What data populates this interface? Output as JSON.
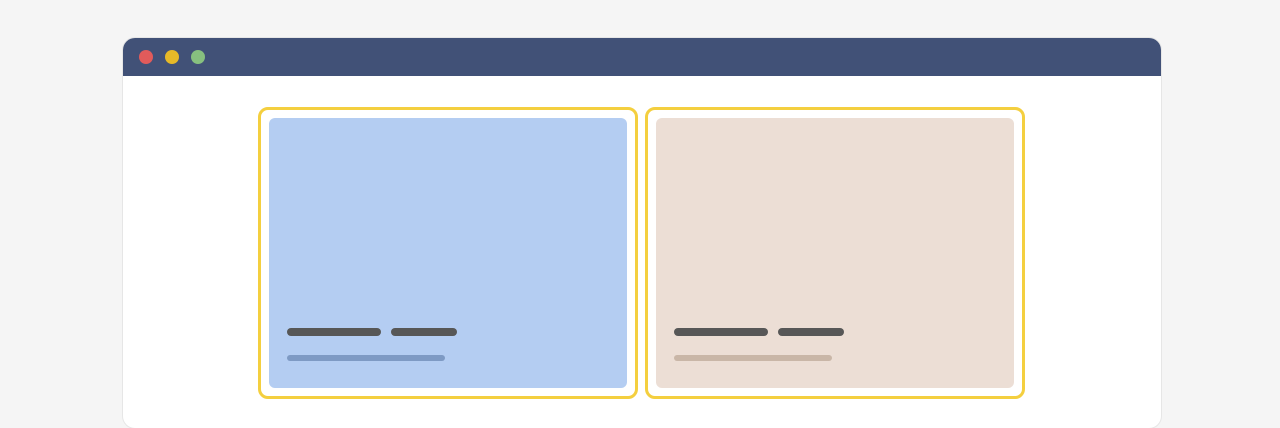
{
  "colors": {
    "background": "#f5f5f5",
    "window": "#ffffff",
    "titlebar": "#415177",
    "close_dot": "#e15b5b",
    "minimize_dot": "#e6b928",
    "maximize_dot": "#87c07f",
    "selection_border": "#f4cf3f",
    "placeholder_dark": "#575757"
  },
  "window": {
    "controls": [
      "close",
      "minimize",
      "maximize"
    ]
  },
  "cards": [
    {
      "name": "card-blue",
      "fill": "#b4cdf2",
      "subtitle_color": "#7e9ac4",
      "selected": true
    },
    {
      "name": "card-beige",
      "fill": "#ecded5",
      "subtitle_color": "#c9b6a7",
      "selected": true
    }
  ]
}
